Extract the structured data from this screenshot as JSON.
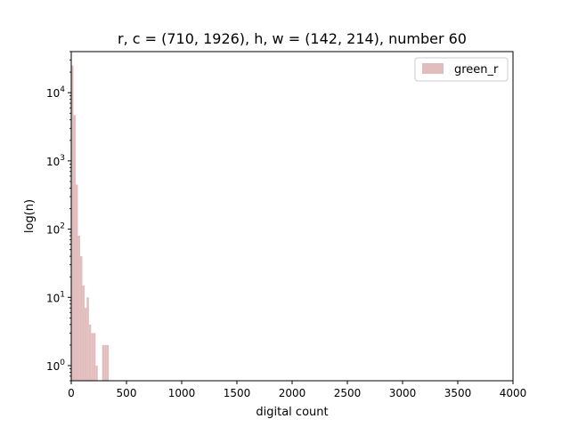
{
  "chart_data": {
    "type": "bar",
    "title": "r, c = (710, 1926), h, w = (142, 214), number 60",
    "xlabel": "digital count",
    "ylabel": "log(n)",
    "xlim": [
      0,
      4000
    ],
    "ylim": [
      0.6,
      40000
    ],
    "yscale": "log",
    "grid": false,
    "legend_position": "top-right",
    "x_ticks": [
      "0",
      "500",
      "1000",
      "1500",
      "2000",
      "2500",
      "3000",
      "3500",
      "4000"
    ],
    "y_ticks": [
      {
        "value": 1,
        "base": "10",
        "exp": "0"
      },
      {
        "value": 10,
        "base": "10",
        "exp": "1"
      },
      {
        "value": 100,
        "base": "10",
        "exp": "2"
      },
      {
        "value": 1000,
        "base": "10",
        "exp": "3"
      },
      {
        "value": 10000,
        "base": "10",
        "exp": "4"
      }
    ],
    "series": [
      {
        "name": "green_r",
        "color": "#e2bdbd",
        "bin_width": 20,
        "bins": [
          {
            "x": 0,
            "value": 25000
          },
          {
            "x": 20,
            "value": 4700
          },
          {
            "x": 40,
            "value": 450
          },
          {
            "x": 60,
            "value": 80
          },
          {
            "x": 80,
            "value": 40
          },
          {
            "x": 100,
            "value": 15
          },
          {
            "x": 120,
            "value": 7
          },
          {
            "x": 140,
            "value": 10
          },
          {
            "x": 160,
            "value": 4
          },
          {
            "x": 180,
            "value": 3
          },
          {
            "x": 200,
            "value": 3
          },
          {
            "x": 220,
            "value": 1
          },
          {
            "x": 280,
            "value": 2
          },
          {
            "x": 300,
            "value": 2
          },
          {
            "x": 320,
            "value": 2
          }
        ]
      }
    ]
  }
}
